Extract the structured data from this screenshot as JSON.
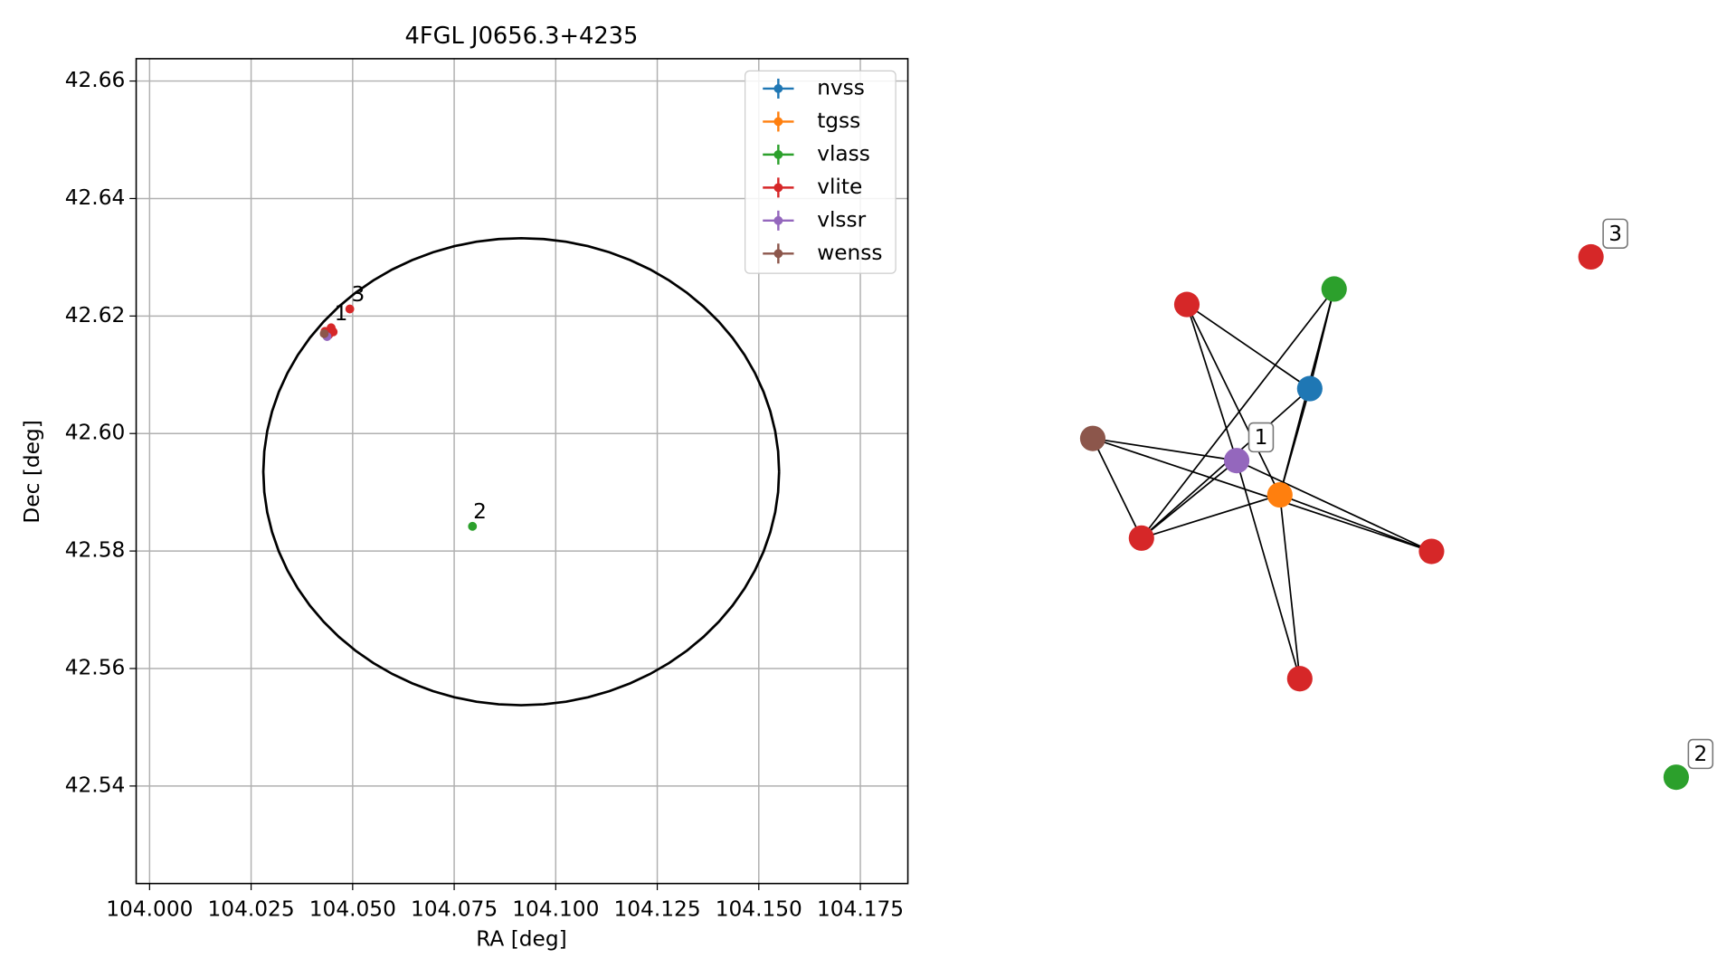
{
  "chart_data": [
    {
      "type": "scatter",
      "title": "4FGL J0656.3+4235",
      "x_label": "RA [deg]",
      "y_label": "Dec [deg]",
      "xlim": [
        103.9967,
        104.1867
      ],
      "ylim": [
        42.5234,
        42.6638
      ],
      "xticks": [
        {
          "value": 104,
          "label": "104.000"
        },
        104.025,
        {
          "value": 104.05,
          "label": "104.050"
        },
        104.075,
        {
          "value": 104.1,
          "label": "104.100"
        },
        104.125,
        {
          "value": 104.15,
          "label": "104.150"
        },
        104.175
      ],
      "yticks": [
        42.54,
        42.56,
        42.58,
        {
          "value": 42.6,
          "label": "42.60"
        },
        42.62,
        42.64,
        42.66
      ],
      "grid": true,
      "legend": "upper right",
      "series": [
        {
          "name": "nvss",
          "color": "#1f77b4",
          "x": [
            104.0446
          ],
          "y": [
            42.6172
          ]
        },
        {
          "name": "tgss",
          "color": "#ff7f0e",
          "x": [
            104.0443
          ],
          "y": [
            42.617
          ]
        },
        {
          "name": "vlass",
          "color": "#2ca02c",
          "x": [
            104.0444,
            104.0795
          ],
          "y": [
            42.6171,
            42.5842
          ]
        },
        {
          "name": "vlite",
          "color": "#d62728",
          "x": [
            104.0449,
            104.0432,
            104.0441,
            104.0447,
            104.0452,
            104.0493
          ],
          "y": [
            42.6176,
            42.6174,
            42.6168,
            42.618,
            42.6173,
            42.6212
          ]
        },
        {
          "name": "vlssr",
          "color": "#9467bd",
          "x": [
            104.0437
          ],
          "y": [
            42.6165
          ]
        },
        {
          "name": "wenss",
          "color": "#8c564b",
          "x": [
            104.043
          ],
          "y": [
            42.617
          ]
        }
      ],
      "ellipse": {
        "center": [
          104.0915,
          42.5935
        ],
        "width": 0.127,
        "height": 0.0795,
        "color": "#000000"
      },
      "annotations": [
        {
          "text": "1",
          "x": 104.0455,
          "y": 42.6185
        },
        {
          "text": "2",
          "x": 104.0797,
          "y": 42.5848
        },
        {
          "text": "3",
          "x": 104.0497,
          "y": 42.6218
        }
      ]
    },
    {
      "type": "network",
      "nodes": [
        {
          "color": "#d62728"
        },
        {
          "color": "#2ca02c"
        },
        {
          "color": "#1f77b4"
        },
        {
          "color": "#8c564b"
        },
        {
          "color": "#9467bd",
          "label": "1"
        },
        {
          "color": "#ff7f0e"
        },
        {
          "color": "#d62728"
        },
        {
          "color": "#d62728"
        },
        {
          "color": "#d62728"
        },
        {
          "color": "#d62728",
          "label": "3"
        },
        {
          "color": "#2ca02c",
          "label": "2"
        }
      ],
      "edges": [
        [
          0,
          2
        ],
        [
          0,
          5
        ],
        [
          0,
          4
        ],
        [
          1,
          2
        ],
        [
          1,
          5
        ],
        [
          1,
          6
        ],
        [
          2,
          6
        ],
        [
          2,
          5
        ],
        [
          3,
          4
        ],
        [
          3,
          6
        ],
        [
          3,
          7
        ],
        [
          4,
          7
        ],
        [
          4,
          8
        ],
        [
          4,
          6
        ],
        [
          5,
          8
        ],
        [
          5,
          6
        ],
        [
          5,
          7
        ]
      ]
    }
  ]
}
